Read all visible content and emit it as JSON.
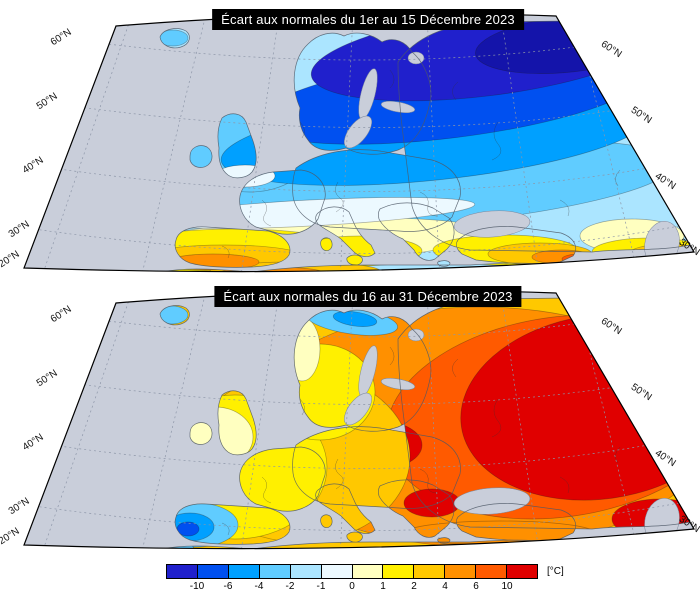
{
  "figure": {
    "type": "temperature-anomaly-maps",
    "region": "Europe"
  },
  "maps": [
    {
      "title": "Écart aux normales du 1er au 15 Décembre 2023",
      "lat_labels_left": [
        "60°N",
        "50°N",
        "40°N",
        "30°N",
        "20°N"
      ],
      "lat_labels_right": [
        "60°N",
        "50°N",
        "40°N",
        "30°N"
      ]
    },
    {
      "title": "Écart aux normales du 16 au 31 Décembre 2023",
      "lat_labels_left": [
        "60°N",
        "50°N",
        "40°N",
        "30°N",
        "20°N"
      ],
      "lat_labels_right": [
        "60°N",
        "50°N",
        "40°N",
        "30°N"
      ]
    }
  ],
  "colorbar": {
    "unit_label": "[°C]",
    "tick_labels": [
      "-10",
      "-6",
      "-4",
      "-2",
      "-1",
      "0",
      "1",
      "2",
      "4",
      "6",
      "10"
    ],
    "segment_colors": [
      "#2020CC",
      "#0050F0",
      "#00A0FF",
      "#60CCFF",
      "#ABE5FF",
      "#ECF9FF",
      "#FFFFC0",
      "#FFF000",
      "#FFC800",
      "#FF9000",
      "#FF5A00",
      "#E00000"
    ]
  },
  "palette": {
    "sea": "#C9CEDA",
    "frame": "#000000",
    "grid": "#8D96A8",
    "title_bg": "#000000",
    "title_fg": "#FFFFFF"
  },
  "chart_data": {
    "type": "heatmap",
    "unit": "°C",
    "scale_ticks": [
      -10,
      -6,
      -4,
      -2,
      -1,
      0,
      1,
      2,
      4,
      6,
      10
    ],
    "panels": [
      {
        "title": "Écart aux normales du 1er au 15 Décembre 2023",
        "summary": "Anomalies froides de -2 à -10 °C sur la Scandinavie, la Baltique et le nord-ouest de la Russie ; anomalies douces de +1 à +6 °C sur la péninsule Ibérique, l'Afrique du Nord, la Turquie et le Proche-Orient."
      },
      {
        "title": "Écart aux normales du 16 au 31 Décembre 2023",
        "summary": "Anomalies chaudes de +2 à +10 °C sur la majeure partie de l'Europe, maximales sur l'Europe de l'Est et la Russie ; anomalies légèrement froides de -1 à -4 °C sur l'ouest de la péninsule Ibérique, l'Islande et le nord de la Scandinavie."
      }
    ]
  }
}
